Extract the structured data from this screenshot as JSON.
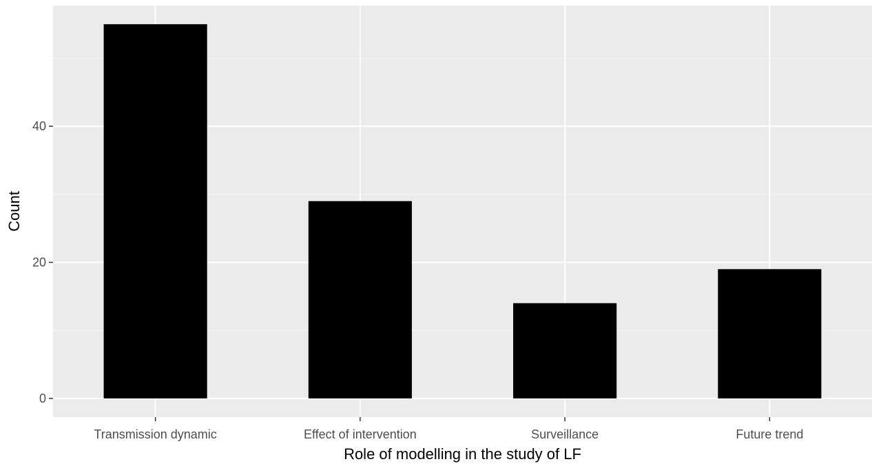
{
  "chart_data": {
    "type": "bar",
    "title": "",
    "xlabel": "Role of modelling in the study of LF",
    "ylabel": "Count",
    "categories": [
      "Transmission dynamic",
      "Effect of intervention",
      "Surveillance",
      "Future trend"
    ],
    "values": [
      55,
      29,
      14,
      19
    ],
    "ylim": [
      -2.75,
      57.75
    ],
    "yticks": [
      0,
      20,
      40
    ],
    "ytick_labels": [
      "0",
      "20",
      "40"
    ],
    "grid": true,
    "legend": "none",
    "colors": {
      "bar": "#000000",
      "panel_background": "#ebebeb",
      "grid_major": "#ffffff",
      "tick_label": "#4d4d4d",
      "axis_title": "#000000"
    }
  }
}
